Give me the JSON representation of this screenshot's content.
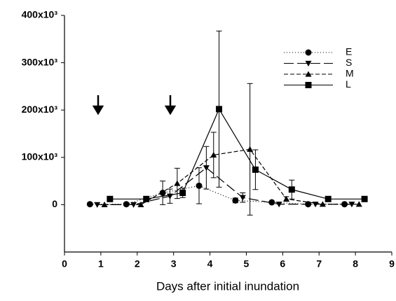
{
  "chart_data": {
    "type": "line",
    "x_label": "Days after initial inundation",
    "xlim": [
      0,
      9
    ],
    "xticks": [
      0,
      1,
      2,
      3,
      4,
      5,
      6,
      7,
      8,
      9
    ],
    "ylim": [
      -100000,
      400000
    ],
    "yticks": [
      {
        "value": 0,
        "label": "0"
      },
      {
        "value": 100000,
        "label": "100x10³"
      },
      {
        "value": 200000,
        "label": "200x10³"
      },
      {
        "value": 300000,
        "label": "300x10³"
      },
      {
        "value": 400000,
        "label": "400x10³"
      }
    ],
    "legend": "top-right",
    "series": [
      {
        "name": "E",
        "color": "#000000",
        "marker": "circle",
        "dash": "1,3",
        "x": [
          0.7,
          1.7,
          2.7,
          3.7,
          4.7,
          5.7,
          6.7,
          7.7
        ],
        "values": [
          1000,
          1000,
          25000,
          40000,
          9000,
          5000,
          1000,
          1000
        ],
        "errors": [
          null,
          null,
          25000,
          38000,
          5000,
          null,
          null,
          null
        ]
      },
      {
        "name": "S",
        "color": "#000000",
        "marker": "triangle-down",
        "dash": "14,5",
        "x": [
          0.9,
          1.9,
          2.9,
          3.9,
          4.9,
          5.9,
          6.9,
          7.9
        ],
        "values": [
          0,
          0,
          18000,
          78000,
          15000,
          1000,
          1000,
          1000
        ],
        "errors": [
          null,
          null,
          15000,
          45000,
          10000,
          null,
          null,
          null
        ]
      },
      {
        "name": "M",
        "color": "#000000",
        "marker": "triangle-up",
        "dash": "6,3",
        "x": [
          1.1,
          2.1,
          3.1,
          4.1,
          5.1,
          6.1,
          7.1,
          8.1
        ],
        "values": [
          0,
          0,
          45000,
          105000,
          117000,
          12000,
          1000,
          1000
        ],
        "errors": [
          null,
          null,
          32000,
          48000,
          139000,
          5000,
          null,
          null
        ]
      },
      {
        "name": "L",
        "color": "#000000",
        "marker": "square",
        "dash": "none",
        "x": [
          1.25,
          2.25,
          3.25,
          4.25,
          5.25,
          6.25,
          7.25,
          8.25
        ],
        "values": [
          12000,
          12000,
          25000,
          202000,
          74000,
          32000,
          12000,
          12000
        ],
        "errors": [
          null,
          null,
          10000,
          165000,
          42000,
          20000,
          null,
          null
        ]
      }
    ]
  }
}
